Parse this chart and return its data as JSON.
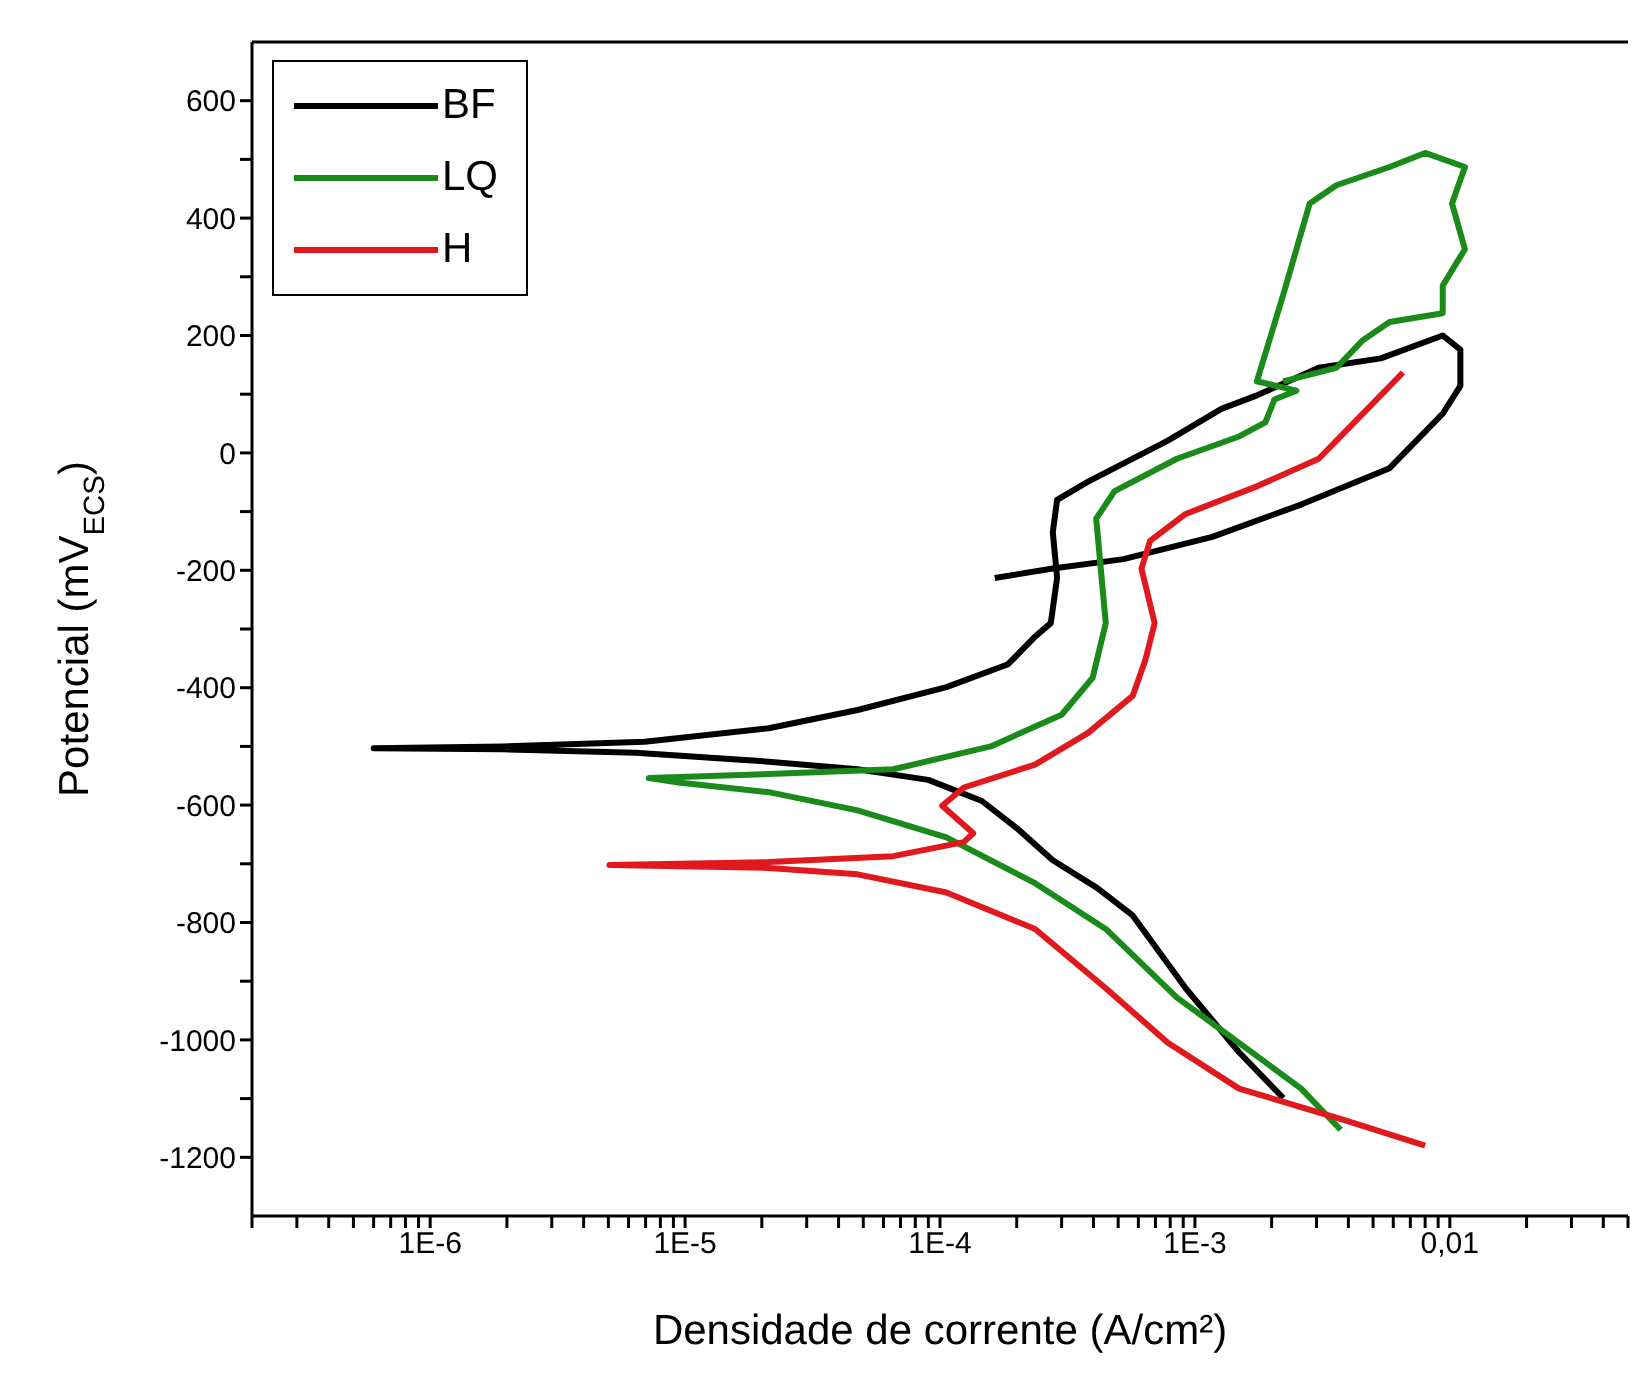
{
  "chart_data": {
    "type": "line",
    "xlabel": "Densidade de corrente (A/cm²)",
    "ylabel": "Potencial (mV$_{ECS}$)",
    "log": "x",
    "grid": false,
    "legend": "top left",
    "marker": "none",
    "line_style": "solid",
    "xlim": [
      2e-07,
      0.05
    ],
    "ylim": [
      -1300,
      700
    ],
    "xticks": [
      {
        "value": 2e-07,
        "label": null
      },
      {
        "value": 3e-07,
        "label": null
      },
      {
        "value": 4e-07,
        "label": null
      },
      {
        "value": 5e-07,
        "label": null
      },
      {
        "value": 6e-07,
        "label": null
      },
      {
        "value": 7e-07,
        "label": null
      },
      {
        "value": 8e-07,
        "label": null
      },
      {
        "value": 9e-07,
        "label": null
      },
      {
        "value": 1e-06,
        "label": "1E-6"
      },
      {
        "value": 2e-06,
        "label": null
      },
      {
        "value": 3e-06,
        "label": null
      },
      {
        "value": 4e-06,
        "label": null
      },
      {
        "value": 5e-06,
        "label": null
      },
      {
        "value": 6e-06,
        "label": null
      },
      {
        "value": 7e-06,
        "label": null
      },
      {
        "value": 8e-06,
        "label": null
      },
      {
        "value": 9e-06,
        "label": null
      },
      {
        "value": 1e-05,
        "label": "1E-5"
      },
      {
        "value": 2e-05,
        "label": null
      },
      {
        "value": 3e-05,
        "label": null
      },
      {
        "value": 4e-05,
        "label": null
      },
      {
        "value": 5e-05,
        "label": null
      },
      {
        "value": 6e-05,
        "label": null
      },
      {
        "value": 7e-05,
        "label": null
      },
      {
        "value": 8e-05,
        "label": null
      },
      {
        "value": 9e-05,
        "label": null
      },
      {
        "value": 0.0001,
        "label": "1E-4"
      },
      {
        "value": 0.0002,
        "label": null
      },
      {
        "value": 0.0003,
        "label": null
      },
      {
        "value": 0.0004,
        "label": null
      },
      {
        "value": 0.0005,
        "label": null
      },
      {
        "value": 0.0006,
        "label": null
      },
      {
        "value": 0.0007,
        "label": null
      },
      {
        "value": 0.0008,
        "label": null
      },
      {
        "value": 0.0009,
        "label": null
      },
      {
        "value": 0.001,
        "label": "1E-3"
      },
      {
        "value": 0.002,
        "label": null
      },
      {
        "value": 0.003,
        "label": null
      },
      {
        "value": 0.004,
        "label": null
      },
      {
        "value": 0.005,
        "label": null
      },
      {
        "value": 0.006,
        "label": null
      },
      {
        "value": 0.007,
        "label": null
      },
      {
        "value": 0.008,
        "label": null
      },
      {
        "value": 0.009,
        "label": null
      },
      {
        "value": 0.01,
        "label": "0,01"
      },
      {
        "value": 0.02,
        "label": null
      },
      {
        "value": 0.03,
        "label": null
      },
      {
        "value": 0.04,
        "label": null
      },
      {
        "value": 0.05,
        "label": null
      }
    ],
    "yticks": [
      -1200,
      {
        "value": -1100,
        "label": null
      },
      -1000,
      {
        "value": -900,
        "label": null
      },
      -800,
      {
        "value": -700,
        "label": null
      },
      -600,
      {
        "value": -500,
        "label": null
      },
      -400,
      {
        "value": -300,
        "label": null
      },
      -200,
      {
        "value": -100,
        "label": null
      },
      0,
      {
        "value": 100,
        "label": null
      },
      200,
      {
        "value": 300,
        "label": null
      },
      400,
      {
        "value": 500,
        "label": null
      },
      600
    ],
    "series": [
      {
        "name": "BF",
        "color": "#000000",
        "x": [
          0.00222,
          0.00149,
          0.00092,
          0.00057,
          0.000413,
          0.000277,
          0.000201,
          0.000146,
          9e-05,
          4.75e-05,
          2.13e-05,
          6.4e-06,
          1.93e-06,
          6e-07,
          1.93e-06,
          6.95e-06,
          2.13e-05,
          4.75e-05,
          0.000106,
          0.000185,
          0.000236,
          0.000272,
          0.000288,
          0.000277,
          0.000288,
          0.000381,
          0.000783,
          0.00127,
          0.00175,
          0.00306,
          0.00536,
          0.00938,
          0.011,
          0.011,
          0.00938,
          0.0058,
          0.00261,
          0.00117,
          0.000525,
          0.000277,
          0.000164
        ],
        "values": [
          -1099,
          -1021,
          -912,
          -788,
          -741,
          -694,
          -640,
          -593,
          -557,
          -539,
          -526,
          -511,
          -505,
          -503,
          -500,
          -492,
          -469,
          -438,
          -399,
          -360,
          -313,
          -290,
          -213,
          -135,
          -80,
          -49,
          21,
          75,
          98,
          145,
          161,
          200,
          176,
          114,
          67,
          -26,
          -88,
          -143,
          -181,
          -197,
          -213
        ]
      },
      {
        "name": "LQ",
        "color": "#1a8a1a",
        "x": [
          0.00373,
          0.00261,
          0.00149,
          0.00085,
          0.000447,
          0.000236,
          0.000106,
          4.75e-05,
          2.13e-05,
          9.6e-06,
          7.2e-06,
          2.13e-05,
          6.55e-05,
          0.000158,
          0.0003,
          0.000397,
          0.000447,
          0.00041,
          0.000484,
          0.00085,
          0.00149,
          0.00189,
          0.00205,
          0.0025,
          0.00175,
          0.00222,
          0.00282,
          0.00359,
          0.0058,
          0.008,
          0.01146,
          0.0102,
          0.01146,
          0.00938,
          0.00938,
          0.0058,
          0.00456,
          0.00359,
          0.00222
        ],
        "values": [
          -1153,
          -1083,
          -1005,
          -928,
          -811,
          -733,
          -655,
          -609,
          -578,
          -562,
          -554,
          -547,
          -539,
          -500,
          -446,
          -383,
          -290,
          -112,
          -65,
          -10,
          28,
          52,
          91,
          106,
          122,
          269,
          425,
          456,
          487,
          511,
          487,
          425,
          347,
          285,
          238,
          223,
          192,
          145,
          122
        ]
      },
      {
        "name": "H",
        "color": "#e0191e",
        "x": [
          0.008,
          0.00389,
          0.00149,
          0.000783,
          0.000447,
          0.000236,
          0.000106,
          4.75e-05,
          2.13e-05,
          5.05e-06,
          2.13e-05,
          6.55e-05,
          0.000124,
          0.000135,
          0.000102,
          0.000124,
          0.000236,
          0.000381,
          0.00057,
          0.00064,
          0.000695,
          0.000617,
          0.000667,
          0.00092,
          0.00175,
          0.00306,
          0.00456,
          0.00655
        ],
        "values": [
          -1180,
          -1137,
          -1083,
          -1005,
          -912,
          -811,
          -749,
          -718,
          -707,
          -702,
          -697,
          -687,
          -663,
          -648,
          -601,
          -570,
          -531,
          -477,
          -414,
          -352,
          -290,
          -197,
          -150,
          -104,
          -57,
          -10,
          67,
          137
        ]
      }
    ]
  }
}
